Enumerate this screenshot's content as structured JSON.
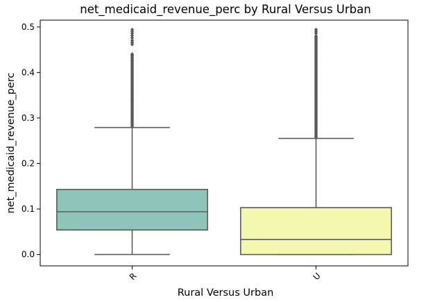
{
  "chart_data": {
    "type": "box",
    "title": "net_medicaid_revenue_perc by Rural Versus Urban",
    "xlabel": "Rural Versus Urban",
    "ylabel": "net_medicaid_revenue_perc",
    "categories": [
      "R",
      "U"
    ],
    "ylim": [
      -0.025,
      0.515
    ],
    "yticks": [
      0.0,
      0.1,
      0.2,
      0.3,
      0.4,
      0.5
    ],
    "ytick_labels": [
      "0.0",
      "0.1",
      "0.2",
      "0.3",
      "0.4",
      "0.5"
    ],
    "grid": false,
    "colors": {
      "R": "#8dc6b9",
      "U": "#f4f7b0",
      "line": "#5a5a5a",
      "axis": "#000000"
    },
    "boxes": [
      {
        "category": "R",
        "whisker_low": 0.0,
        "q1": 0.054,
        "median": 0.094,
        "q3": 0.143,
        "whisker_high": 0.279,
        "outliers": [
          0.282,
          0.285,
          0.288,
          0.291,
          0.294,
          0.297,
          0.3,
          0.303,
          0.306,
          0.309,
          0.312,
          0.315,
          0.318,
          0.321,
          0.324,
          0.327,
          0.33,
          0.333,
          0.336,
          0.339,
          0.342,
          0.345,
          0.348,
          0.351,
          0.354,
          0.357,
          0.36,
          0.363,
          0.366,
          0.369,
          0.372,
          0.375,
          0.378,
          0.381,
          0.384,
          0.387,
          0.39,
          0.393,
          0.396,
          0.399,
          0.402,
          0.405,
          0.408,
          0.411,
          0.414,
          0.417,
          0.42,
          0.423,
          0.426,
          0.429,
          0.432,
          0.435,
          0.438,
          0.44,
          0.462,
          0.466,
          0.47,
          0.476,
          0.481,
          0.486,
          0.49,
          0.494
        ]
      },
      {
        "category": "U",
        "whisker_low": 0.0,
        "q1": 0.0,
        "median": 0.033,
        "q3": 0.103,
        "whisker_high": 0.255,
        "outliers": [
          0.258,
          0.261,
          0.264,
          0.267,
          0.27,
          0.273,
          0.276,
          0.279,
          0.282,
          0.285,
          0.288,
          0.291,
          0.294,
          0.297,
          0.3,
          0.303,
          0.306,
          0.309,
          0.312,
          0.315,
          0.318,
          0.321,
          0.324,
          0.327,
          0.33,
          0.333,
          0.336,
          0.339,
          0.342,
          0.345,
          0.348,
          0.351,
          0.354,
          0.357,
          0.36,
          0.363,
          0.366,
          0.369,
          0.372,
          0.375,
          0.378,
          0.381,
          0.384,
          0.387,
          0.39,
          0.393,
          0.396,
          0.399,
          0.402,
          0.405,
          0.408,
          0.411,
          0.414,
          0.417,
          0.42,
          0.423,
          0.426,
          0.429,
          0.432,
          0.435,
          0.438,
          0.441,
          0.444,
          0.447,
          0.45,
          0.453,
          0.456,
          0.459,
          0.462,
          0.465,
          0.468,
          0.471,
          0.474,
          0.477,
          0.48,
          0.486,
          0.49,
          0.494
        ]
      }
    ]
  }
}
